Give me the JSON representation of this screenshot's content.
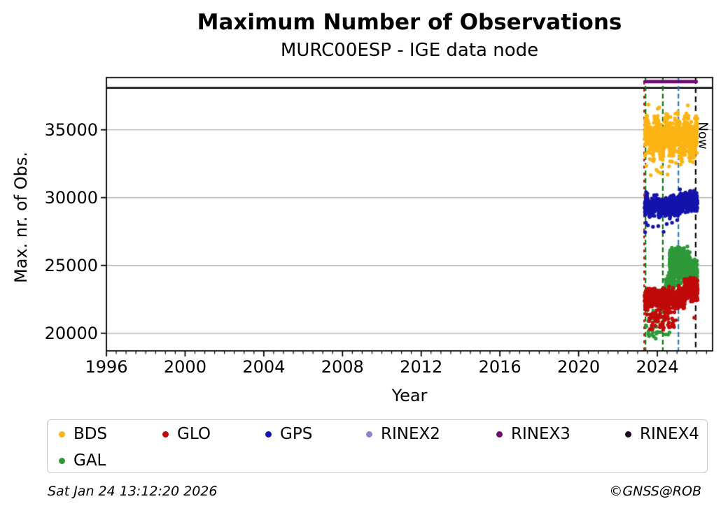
{
  "footer": {
    "timestamp": "Sat Jan 24 13:12:20 2026",
    "credit": "©GNSS@ROB"
  },
  "chart_data": {
    "type": "scatter",
    "title": "Maximum Number of Observations",
    "subtitle": "MURC00ESP - IGE data node",
    "xlabel": "Year",
    "ylabel": "Max. nr. of Obs.",
    "now_label": "Now",
    "xlim": [
      1996,
      2026.81
    ],
    "ylim": [
      18700,
      38850
    ],
    "xticks": [
      1996,
      2000,
      2004,
      2008,
      2012,
      2016,
      2020,
      2024
    ],
    "x_minor_step": 0.5,
    "yticks": [
      20000,
      25000,
      30000,
      35000
    ],
    "grid": "horizontal-only",
    "grid_color": "#b0b0b0",
    "frame_color": "#000000",
    "seed": 20260124,
    "dot_radius": 2.7,
    "series": [
      {
        "name": "BDS",
        "color": "#FCB414",
        "clusters": [
          {
            "n": 1000,
            "x": [
              2023.35,
              2026.04
            ],
            "y": [
              32500,
              36300
            ],
            "wave": {
              "amp": 450,
              "cycles": 5.3
            }
          }
        ],
        "outliers": [
          [
            2023.44,
            32350
          ],
          [
            2023.67,
            31650
          ],
          [
            2023.96,
            32050
          ],
          [
            2024.18,
            31800
          ],
          [
            2024.22,
            32250
          ],
          [
            2024.52,
            31700
          ],
          [
            2024.6,
            32300
          ],
          [
            2024.05,
            31900
          ],
          [
            2024.95,
            32550
          ],
          [
            2023.55,
            36850
          ],
          [
            2025.55,
            36800
          ],
          [
            2024.1,
            36650
          ]
        ]
      },
      {
        "name": "GAL",
        "color": "#2E9939",
        "clusters": [
          {
            "n": 60,
            "x": [
              2023.36,
              2024.42
            ],
            "y": [
              19700,
              23400
            ],
            "dist": "uniform"
          },
          {
            "n": 130,
            "x": [
              2024.42,
              2024.85
            ],
            "y": [
              22900,
              24700
            ]
          },
          {
            "n": 560,
            "x": [
              2024.62,
              2025.68
            ],
            "y": [
              23100,
              26850
            ]
          },
          {
            "n": 250,
            "x": [
              2025.6,
              2026.03
            ],
            "y": [
              22550,
              25900
            ]
          }
        ],
        "outliers": [
          [
            2024.55,
            19900
          ],
          [
            2024.62,
            20050
          ],
          [
            2023.92,
            19600
          ],
          [
            2024.78,
            21000
          ]
        ]
      },
      {
        "name": "GLO",
        "color": "#C00A0A",
        "clusters": [
          {
            "n": 560,
            "x": [
              2023.35,
              2025.4
            ],
            "y": [
              21450,
              23650
            ],
            "wave": {
              "amp": 110,
              "cycles": 5
            }
          },
          {
            "n": 330,
            "x": [
              2025.35,
              2026.05
            ],
            "y": [
              22150,
              24300
            ]
          },
          {
            "n": 55,
            "x": [
              2023.45,
              2024.95
            ],
            "y": [
              20350,
              21600
            ],
            "dist": "uniform"
          }
        ],
        "outliers": [
          [
            2023.62,
            20300
          ],
          [
            2024.3,
            20250
          ],
          [
            2024.85,
            20450
          ],
          [
            2025.88,
            21150
          ],
          [
            2023.75,
            20300
          ]
        ]
      },
      {
        "name": "GPS",
        "color": "#1414AC",
        "clusters": [
          {
            "n": 430,
            "x": [
              2023.35,
              2025.1
            ],
            "y": [
              28350,
              30350
            ],
            "wave": {
              "amp": 120,
              "cycles": 4
            }
          },
          {
            "n": 310,
            "x": [
              2025.05,
              2026.04
            ],
            "y": [
              28650,
              30700
            ]
          }
        ],
        "outliers": [
          [
            2023.38,
            27450
          ],
          [
            2024.32,
            27480
          ],
          [
            2023.52,
            27950
          ],
          [
            2023.78,
            27850
          ],
          [
            2024.05,
            27900
          ],
          [
            2024.48,
            28050
          ],
          [
            2024.75,
            28150
          ],
          [
            2023.42,
            28150
          ]
        ]
      }
    ],
    "event_lines": [
      {
        "x": 2023.33,
        "color": "#CC1111",
        "dash": [
          4,
          6
        ],
        "offset": 5
      },
      {
        "x": 2023.4,
        "color": "#0B7C0B",
        "dash": [
          7,
          4
        ],
        "offset": 0
      },
      {
        "x": 2024.28,
        "color": "#0B7C0B",
        "dash": [
          7,
          4
        ],
        "offset": 0
      },
      {
        "x": 2025.07,
        "color": "#2878B8",
        "dash": [
          7,
          4
        ],
        "offset": 0
      },
      {
        "x": 2025.95,
        "color": "#000000",
        "dash": [
          8,
          5
        ],
        "offset": 0
      }
    ],
    "rinex3_bar": {
      "x0": 2023.37,
      "x1": 2025.98,
      "value": 38560,
      "color": "#6E0E6E",
      "thickness": 5
    },
    "top_line": {
      "value": 38090,
      "color": "#000000",
      "thickness": 2.4
    },
    "legend": {
      "position": "bottom",
      "entries": [
        {
          "label": "BDS",
          "color": "#FCB414"
        },
        {
          "label": "GLO",
          "color": "#C00A0A"
        },
        {
          "label": "GPS",
          "color": "#1414AC"
        },
        {
          "label": "RINEX2",
          "color": "#8A86C8"
        },
        {
          "label": "RINEX3",
          "color": "#6E0E6E"
        },
        {
          "label": "RINEX4",
          "color": "#1C0822"
        },
        {
          "label": "GAL",
          "color": "#2E9939"
        }
      ]
    }
  }
}
